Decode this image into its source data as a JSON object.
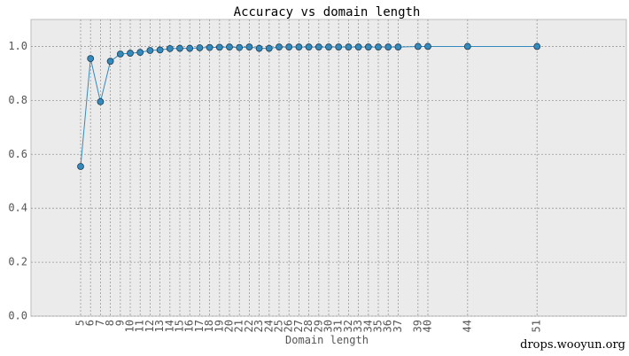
{
  "chart_data": {
    "type": "line",
    "title": "Accuracy vs domain length",
    "x_label": "Domain length",
    "watermark": "drops.wooyun.org",
    "x": [
      5,
      6,
      7,
      8,
      9,
      10,
      11,
      12,
      13,
      14,
      15,
      16,
      17,
      18,
      19,
      20,
      21,
      22,
      23,
      24,
      25,
      26,
      27,
      28,
      29,
      30,
      31,
      32,
      33,
      34,
      35,
      36,
      37,
      39,
      40,
      44,
      51
    ],
    "series": [
      {
        "name": "accuracy",
        "color": "#348abd",
        "values": [
          0.555,
          0.955,
          0.795,
          0.945,
          0.972,
          0.975,
          0.978,
          0.985,
          0.987,
          0.992,
          0.993,
          0.993,
          0.995,
          0.996,
          0.997,
          0.998,
          0.996,
          0.998,
          0.993,
          0.993,
          0.998,
          0.998,
          0.998,
          0.998,
          0.998,
          0.998,
          0.998,
          0.998,
          0.998,
          0.998,
          0.998,
          0.998,
          0.998,
          1.0,
          1.0,
          1.0,
          1.0
        ]
      }
    ],
    "xlim": [
      0,
      60
    ],
    "xticks": [
      5,
      6,
      7,
      8,
      9,
      10,
      11,
      12,
      13,
      14,
      15,
      16,
      17,
      18,
      19,
      20,
      21,
      22,
      23,
      24,
      25,
      26,
      27,
      28,
      29,
      30,
      31,
      32,
      33,
      34,
      35,
      36,
      37,
      39,
      40,
      44,
      51
    ],
    "ylim": [
      0,
      1.1
    ],
    "yticks": [
      {
        "value": 0,
        "label": "0.0"
      },
      0.2,
      0.4,
      0.6,
      0.8,
      {
        "value": 1,
        "label": "1.0"
      }
    ],
    "grid": true
  }
}
